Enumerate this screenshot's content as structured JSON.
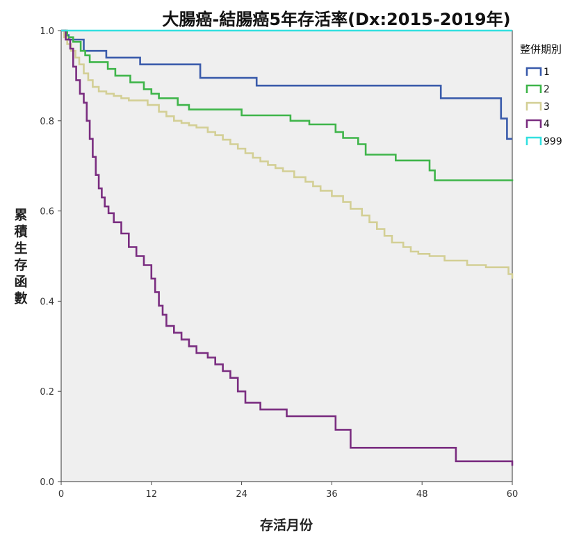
{
  "chart_data": {
    "type": "line",
    "title": "大腸癌-結腸癌5年存活率(Dx:2015-2019年)",
    "xlabel": "存活月份",
    "ylabel": "累積生存函數",
    "xlim": [
      0,
      60
    ],
    "ylim": [
      0.0,
      1.0
    ],
    "xticks": [
      0,
      12,
      24,
      36,
      48,
      60
    ],
    "yticks": [
      0.0,
      0.2,
      0.4,
      0.6,
      0.8,
      1.0
    ],
    "xtick_labels": [
      "0",
      "12",
      "24",
      "36",
      "48",
      "60"
    ],
    "ytick_labels": [
      "0.0",
      "0.2",
      "0.4",
      "0.6",
      "0.8",
      "1.0"
    ],
    "grid": false,
    "plot_background": "#efefef",
    "legend": {
      "title": "整併期別",
      "position": "right"
    },
    "series": [
      {
        "name": "1",
        "color": "#3a5bab",
        "x": [
          0,
          0.5,
          1.0,
          3.0,
          6.0,
          10.5,
          18.5,
          26.0,
          50.5,
          58.5,
          59.3,
          60
        ],
        "y": [
          1.0,
          0.99,
          0.98,
          0.955,
          0.94,
          0.925,
          0.895,
          0.878,
          0.85,
          0.805,
          0.76,
          0.76
        ]
      },
      {
        "name": "2",
        "color": "#3fb54a",
        "x": [
          0,
          0.8,
          1.6,
          2.6,
          3.2,
          3.8,
          6.2,
          7.2,
          9.2,
          11.0,
          12.0,
          13.0,
          15.5,
          17.0,
          24.0,
          30.5,
          33.0,
          36.5,
          37.5,
          39.5,
          40.5,
          44.5,
          49.0,
          49.7,
          60
        ],
        "y": [
          1.0,
          0.985,
          0.975,
          0.955,
          0.945,
          0.93,
          0.915,
          0.9,
          0.885,
          0.87,
          0.86,
          0.85,
          0.835,
          0.825,
          0.812,
          0.8,
          0.792,
          0.775,
          0.762,
          0.748,
          0.725,
          0.712,
          0.69,
          0.668,
          0.666
        ]
      },
      {
        "name": "3",
        "color": "#d3cf95",
        "x": [
          0,
          0.4,
          0.8,
          1.3,
          1.9,
          2.4,
          3.0,
          3.6,
          4.2,
          5.0,
          6.0,
          7.0,
          8.0,
          9.0,
          11.5,
          13.0,
          14.0,
          15.0,
          16.0,
          17.0,
          18.0,
          19.5,
          20.5,
          21.5,
          22.5,
          23.5,
          24.5,
          25.5,
          26.5,
          27.5,
          28.5,
          29.5,
          31.0,
          32.5,
          33.5,
          34.5,
          36.0,
          37.5,
          38.5,
          40.0,
          41.0,
          42.0,
          43.0,
          44.0,
          45.5,
          46.5,
          47.5,
          49.0,
          51.0,
          54.0,
          56.5,
          59.5,
          60
        ],
        "y": [
          1.0,
          0.985,
          0.97,
          0.955,
          0.94,
          0.925,
          0.905,
          0.89,
          0.875,
          0.865,
          0.86,
          0.855,
          0.85,
          0.845,
          0.835,
          0.82,
          0.81,
          0.8,
          0.795,
          0.79,
          0.785,
          0.775,
          0.768,
          0.758,
          0.748,
          0.738,
          0.728,
          0.718,
          0.71,
          0.702,
          0.695,
          0.688,
          0.675,
          0.665,
          0.655,
          0.645,
          0.633,
          0.62,
          0.605,
          0.59,
          0.575,
          0.56,
          0.545,
          0.53,
          0.52,
          0.51,
          0.505,
          0.5,
          0.49,
          0.48,
          0.475,
          0.46,
          0.45
        ]
      },
      {
        "name": "4",
        "color": "#7a2d80",
        "x": [
          0,
          0.6,
          1.2,
          1.6,
          2.0,
          2.5,
          3.0,
          3.4,
          3.8,
          4.2,
          4.6,
          5.0,
          5.4,
          5.8,
          6.3,
          7.0,
          8.0,
          9.0,
          10.0,
          11.0,
          12.0,
          12.5,
          13.0,
          13.5,
          14.0,
          15.0,
          16.0,
          17.0,
          18.0,
          19.5,
          20.5,
          21.5,
          22.5,
          23.5,
          24.5,
          26.5,
          30.0,
          36.5,
          38.5,
          52.5,
          60
        ],
        "y": [
          1.0,
          0.98,
          0.96,
          0.92,
          0.89,
          0.86,
          0.84,
          0.8,
          0.76,
          0.72,
          0.68,
          0.65,
          0.63,
          0.61,
          0.595,
          0.575,
          0.55,
          0.52,
          0.5,
          0.48,
          0.45,
          0.42,
          0.39,
          0.37,
          0.345,
          0.33,
          0.315,
          0.3,
          0.285,
          0.275,
          0.26,
          0.245,
          0.23,
          0.2,
          0.175,
          0.16,
          0.145,
          0.115,
          0.075,
          0.045,
          0.035
        ]
      },
      {
        "name": "999",
        "color": "#33e0e0",
        "x": [
          0,
          60
        ],
        "y": [
          1.0,
          1.0
        ]
      }
    ]
  }
}
